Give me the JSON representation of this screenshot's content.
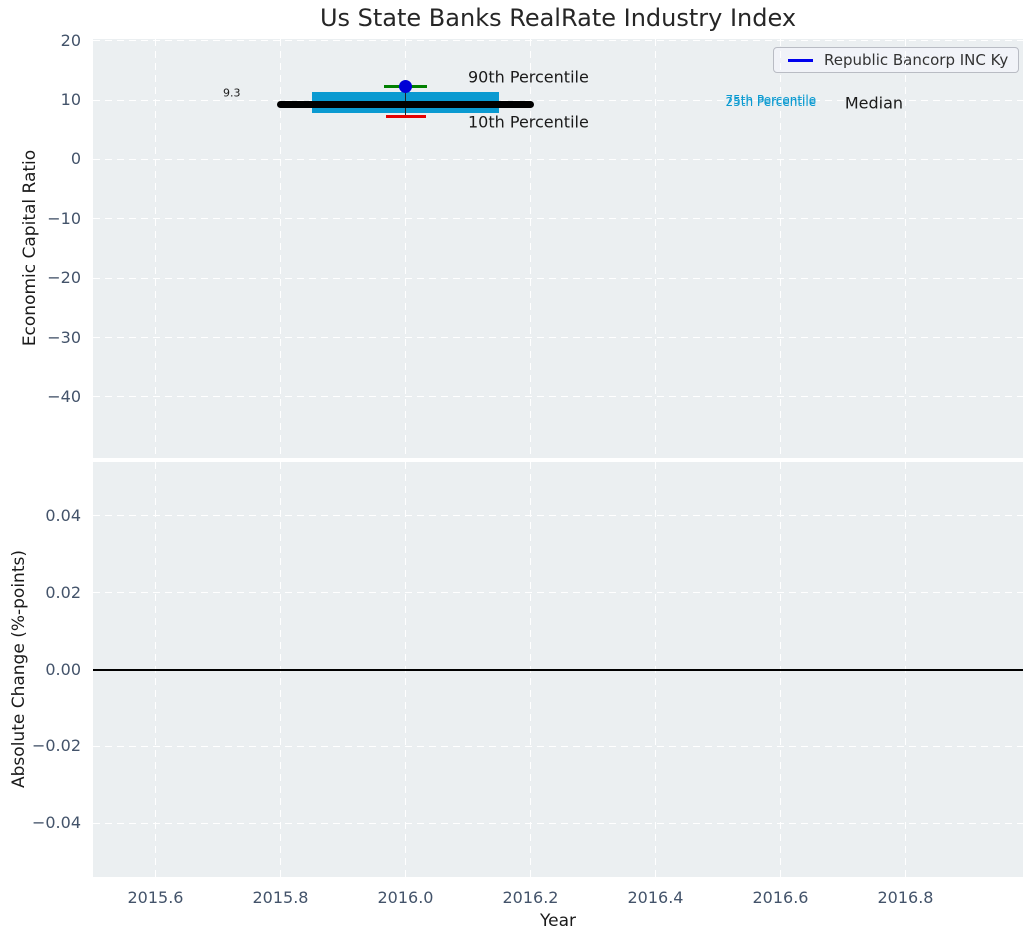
{
  "title": "Us State Banks RealRate Industry Index",
  "legend": {
    "label": "Republic Bancorp INC Ky",
    "line_color": "#0000ee"
  },
  "colors": {
    "axes_background": "#ebeff1",
    "grid": "#ffffff",
    "tick_label": "#43536a",
    "iqr_box": "#0a9ad1",
    "median_line": "#000000",
    "company_dot": "#0000d6",
    "cap_90th": "#008000",
    "cap_10th": "#e60000",
    "zero_line": "#000000"
  },
  "chart_data": [
    {
      "type": "box",
      "title": "Us State Banks RealRate Industry Index",
      "ylabel": "Economic Capital Ratio",
      "xlim": [
        2015.5,
        2016.988
      ],
      "ylim": [
        -50.3,
        20.3
      ],
      "yticks": [
        20,
        10,
        0,
        -10,
        -20,
        -30,
        -40
      ],
      "ytick_labels": [
        "20",
        "10",
        "0",
        "−10",
        "−20",
        "−30",
        "−40"
      ],
      "xticks": [
        2015.6,
        2015.8,
        2016.0,
        2016.2,
        2016.4,
        2016.6,
        2016.8
      ],
      "grid": "dashed-white",
      "legend_position": "upper right",
      "series": {
        "name": "Republic Bancorp INC Ky",
        "year": 2016.0,
        "company_value": 12.24,
        "median": 9.3,
        "p90": 12.24,
        "p75": 11.35,
        "p25": 7.85,
        "p10": 7.18,
        "median_line_span": [
          2015.795,
          2016.205
        ],
        "box_span": [
          2015.85,
          2016.15
        ],
        "cap90_halfwidth": 0.035,
        "cap10_halfwidth": 0.032
      },
      "annotations": [
        {
          "text": "90th Percentile",
          "x": 2016.1,
          "y": 13.9,
          "size": 16,
          "color": "#1a1a1a",
          "align": "left"
        },
        {
          "text": "10th Percentile",
          "x": 2016.1,
          "y": 6.3,
          "size": 16,
          "color": "#1a1a1a",
          "align": "left"
        },
        {
          "text": "75th Percentile",
          "x": 2016.512,
          "y": 9.95,
          "size": 12,
          "color": "#0a9ad1",
          "align": "left"
        },
        {
          "text": "25th Percentile",
          "x": 2016.512,
          "y": 9.68,
          "size": 12,
          "color": "#0a9ad1",
          "align": "left"
        },
        {
          "text": "Median",
          "x": 2016.703,
          "y": 9.55,
          "size": 16,
          "color": "#1a1a1a",
          "align": "left"
        },
        {
          "text": "9.3",
          "x": 2015.736,
          "y": 11.2,
          "size": 11,
          "color": "#1a1a1a",
          "align": "right"
        }
      ]
    },
    {
      "type": "line",
      "ylabel": "Absolute Change (%-points)",
      "xlabel": "Year",
      "xlim": [
        2015.5,
        2016.988
      ],
      "ylim": [
        -0.054,
        0.054
      ],
      "yticks": [
        0.04,
        0.02,
        0.0,
        -0.02,
        -0.04
      ],
      "ytick_labels": [
        "0.04",
        "0.02",
        "0.00",
        "−0.02",
        "−0.04"
      ],
      "xticks": [
        2015.6,
        2015.8,
        2016.0,
        2016.2,
        2016.4,
        2016.6,
        2016.8
      ],
      "xtick_labels": [
        "2015.6",
        "2015.8",
        "2016.0",
        "2016.2",
        "2016.4",
        "2016.6",
        "2016.8"
      ],
      "grid": "dashed-white",
      "zero_line": 0.0,
      "values": []
    }
  ]
}
